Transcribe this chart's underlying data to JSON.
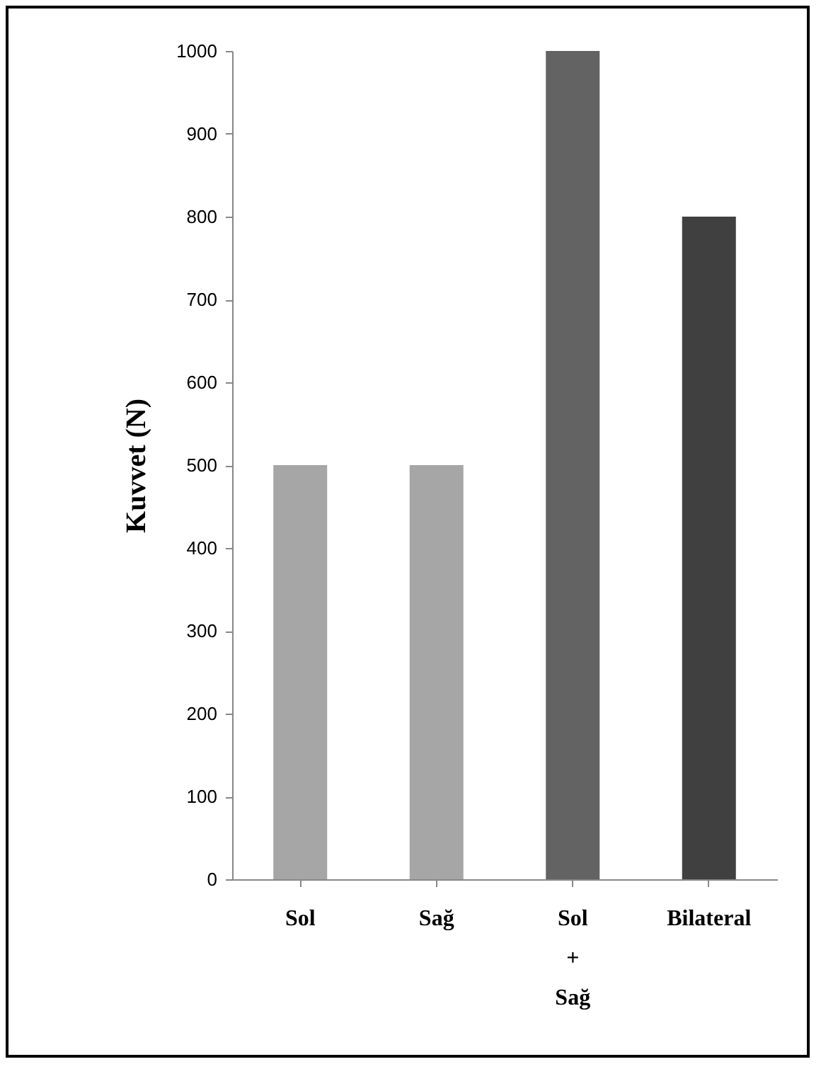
{
  "chart_data": {
    "type": "bar",
    "ylabel": "Kuvvet (N)",
    "categories": [
      "Sol",
      "Sağ",
      "Sol + Sağ",
      "Bilateral"
    ],
    "values": [
      500,
      500,
      1000,
      800
    ],
    "colors": [
      "#a6a6a6",
      "#a6a6a6",
      "#636363",
      "#404040"
    ],
    "ylim": [
      0,
      1000
    ],
    "yticks": [
      0,
      100,
      200,
      300,
      400,
      500,
      600,
      700,
      800,
      900,
      1000
    ],
    "grid": false,
    "legend": false
  }
}
